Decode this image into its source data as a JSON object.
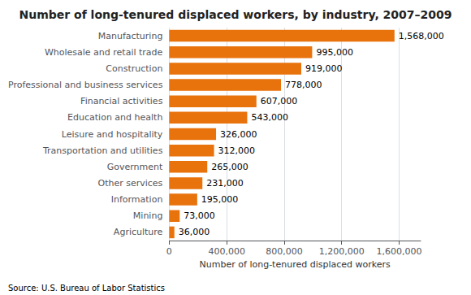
{
  "chart_data": {
    "type": "bar",
    "orientation": "horizontal",
    "title": "Number of long-tenured displaced workers, by industry, 2007–2009",
    "xlabel": "Number of long-tenured displaced workers",
    "source": "Source: U.S. Bureau of Labor Statistics",
    "categories": [
      "Agriculture",
      "Mining",
      "Information",
      "Other services",
      "Government",
      "Transportation and utilities",
      "Leisure and hospitality",
      "Education and health",
      "Financial activities",
      "Professional and business services",
      "Construction",
      "Wholesale and retail trade",
      "Manufacturing"
    ],
    "values": [
      36000,
      73000,
      195000,
      231000,
      265000,
      312000,
      326000,
      543000,
      607000,
      778000,
      919000,
      995000,
      1568000
    ],
    "value_labels": [
      "36,000",
      "73,000",
      "195,000",
      "231,000",
      "265,000",
      "312,000",
      "326,000",
      "543,000",
      "607,000",
      "778,000",
      "919,000",
      "995,000",
      "1,568,000"
    ],
    "data_labels": true,
    "color": "#E8720C",
    "xlim": [
      0,
      1750000
    ],
    "xticks": [
      0,
      {
        "value": 400000,
        "label": "400,000"
      },
      {
        "value": 800000,
        "label": "800,000"
      },
      {
        "value": 1200000,
        "label": "1,200,000"
      },
      {
        "value": 1600000,
        "label": "1,600,000"
      }
    ],
    "grid": true
  }
}
